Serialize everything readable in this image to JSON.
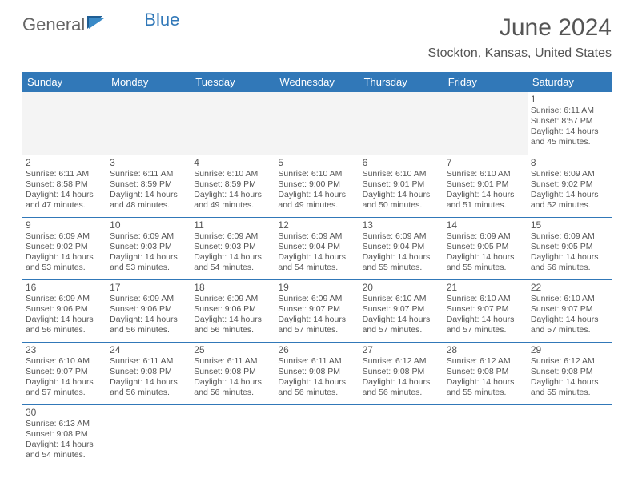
{
  "brand": {
    "part1": "General",
    "part2": "Blue"
  },
  "title": "June 2024",
  "location": "Stockton, Kansas, United States",
  "colors": {
    "accent": "#3178b8",
    "text": "#555555",
    "bg": "#ffffff",
    "grid": "#3178b8"
  },
  "weekdays": [
    "Sunday",
    "Monday",
    "Tuesday",
    "Wednesday",
    "Thursday",
    "Friday",
    "Saturday"
  ],
  "weeks": [
    [
      null,
      null,
      null,
      null,
      null,
      null,
      {
        "n": "1",
        "sr": "Sunrise: 6:11 AM",
        "ss": "Sunset: 8:57 PM",
        "dl1": "Daylight: 14 hours",
        "dl2": "and 45 minutes."
      }
    ],
    [
      {
        "n": "2",
        "sr": "Sunrise: 6:11 AM",
        "ss": "Sunset: 8:58 PM",
        "dl1": "Daylight: 14 hours",
        "dl2": "and 47 minutes."
      },
      {
        "n": "3",
        "sr": "Sunrise: 6:11 AM",
        "ss": "Sunset: 8:59 PM",
        "dl1": "Daylight: 14 hours",
        "dl2": "and 48 minutes."
      },
      {
        "n": "4",
        "sr": "Sunrise: 6:10 AM",
        "ss": "Sunset: 8:59 PM",
        "dl1": "Daylight: 14 hours",
        "dl2": "and 49 minutes."
      },
      {
        "n": "5",
        "sr": "Sunrise: 6:10 AM",
        "ss": "Sunset: 9:00 PM",
        "dl1": "Daylight: 14 hours",
        "dl2": "and 49 minutes."
      },
      {
        "n": "6",
        "sr": "Sunrise: 6:10 AM",
        "ss": "Sunset: 9:01 PM",
        "dl1": "Daylight: 14 hours",
        "dl2": "and 50 minutes."
      },
      {
        "n": "7",
        "sr": "Sunrise: 6:10 AM",
        "ss": "Sunset: 9:01 PM",
        "dl1": "Daylight: 14 hours",
        "dl2": "and 51 minutes."
      },
      {
        "n": "8",
        "sr": "Sunrise: 6:09 AM",
        "ss": "Sunset: 9:02 PM",
        "dl1": "Daylight: 14 hours",
        "dl2": "and 52 minutes."
      }
    ],
    [
      {
        "n": "9",
        "sr": "Sunrise: 6:09 AM",
        "ss": "Sunset: 9:02 PM",
        "dl1": "Daylight: 14 hours",
        "dl2": "and 53 minutes."
      },
      {
        "n": "10",
        "sr": "Sunrise: 6:09 AM",
        "ss": "Sunset: 9:03 PM",
        "dl1": "Daylight: 14 hours",
        "dl2": "and 53 minutes."
      },
      {
        "n": "11",
        "sr": "Sunrise: 6:09 AM",
        "ss": "Sunset: 9:03 PM",
        "dl1": "Daylight: 14 hours",
        "dl2": "and 54 minutes."
      },
      {
        "n": "12",
        "sr": "Sunrise: 6:09 AM",
        "ss": "Sunset: 9:04 PM",
        "dl1": "Daylight: 14 hours",
        "dl2": "and 54 minutes."
      },
      {
        "n": "13",
        "sr": "Sunrise: 6:09 AM",
        "ss": "Sunset: 9:04 PM",
        "dl1": "Daylight: 14 hours",
        "dl2": "and 55 minutes."
      },
      {
        "n": "14",
        "sr": "Sunrise: 6:09 AM",
        "ss": "Sunset: 9:05 PM",
        "dl1": "Daylight: 14 hours",
        "dl2": "and 55 minutes."
      },
      {
        "n": "15",
        "sr": "Sunrise: 6:09 AM",
        "ss": "Sunset: 9:05 PM",
        "dl1": "Daylight: 14 hours",
        "dl2": "and 56 minutes."
      }
    ],
    [
      {
        "n": "16",
        "sr": "Sunrise: 6:09 AM",
        "ss": "Sunset: 9:06 PM",
        "dl1": "Daylight: 14 hours",
        "dl2": "and 56 minutes."
      },
      {
        "n": "17",
        "sr": "Sunrise: 6:09 AM",
        "ss": "Sunset: 9:06 PM",
        "dl1": "Daylight: 14 hours",
        "dl2": "and 56 minutes."
      },
      {
        "n": "18",
        "sr": "Sunrise: 6:09 AM",
        "ss": "Sunset: 9:06 PM",
        "dl1": "Daylight: 14 hours",
        "dl2": "and 56 minutes."
      },
      {
        "n": "19",
        "sr": "Sunrise: 6:09 AM",
        "ss": "Sunset: 9:07 PM",
        "dl1": "Daylight: 14 hours",
        "dl2": "and 57 minutes."
      },
      {
        "n": "20",
        "sr": "Sunrise: 6:10 AM",
        "ss": "Sunset: 9:07 PM",
        "dl1": "Daylight: 14 hours",
        "dl2": "and 57 minutes."
      },
      {
        "n": "21",
        "sr": "Sunrise: 6:10 AM",
        "ss": "Sunset: 9:07 PM",
        "dl1": "Daylight: 14 hours",
        "dl2": "and 57 minutes."
      },
      {
        "n": "22",
        "sr": "Sunrise: 6:10 AM",
        "ss": "Sunset: 9:07 PM",
        "dl1": "Daylight: 14 hours",
        "dl2": "and 57 minutes."
      }
    ],
    [
      {
        "n": "23",
        "sr": "Sunrise: 6:10 AM",
        "ss": "Sunset: 9:07 PM",
        "dl1": "Daylight: 14 hours",
        "dl2": "and 57 minutes."
      },
      {
        "n": "24",
        "sr": "Sunrise: 6:11 AM",
        "ss": "Sunset: 9:08 PM",
        "dl1": "Daylight: 14 hours",
        "dl2": "and 56 minutes."
      },
      {
        "n": "25",
        "sr": "Sunrise: 6:11 AM",
        "ss": "Sunset: 9:08 PM",
        "dl1": "Daylight: 14 hours",
        "dl2": "and 56 minutes."
      },
      {
        "n": "26",
        "sr": "Sunrise: 6:11 AM",
        "ss": "Sunset: 9:08 PM",
        "dl1": "Daylight: 14 hours",
        "dl2": "and 56 minutes."
      },
      {
        "n": "27",
        "sr": "Sunrise: 6:12 AM",
        "ss": "Sunset: 9:08 PM",
        "dl1": "Daylight: 14 hours",
        "dl2": "and 56 minutes."
      },
      {
        "n": "28",
        "sr": "Sunrise: 6:12 AM",
        "ss": "Sunset: 9:08 PM",
        "dl1": "Daylight: 14 hours",
        "dl2": "and 55 minutes."
      },
      {
        "n": "29",
        "sr": "Sunrise: 6:12 AM",
        "ss": "Sunset: 9:08 PM",
        "dl1": "Daylight: 14 hours",
        "dl2": "and 55 minutes."
      }
    ],
    [
      {
        "n": "30",
        "sr": "Sunrise: 6:13 AM",
        "ss": "Sunset: 9:08 PM",
        "dl1": "Daylight: 14 hours",
        "dl2": "and 54 minutes."
      },
      null,
      null,
      null,
      null,
      null,
      null
    ]
  ]
}
